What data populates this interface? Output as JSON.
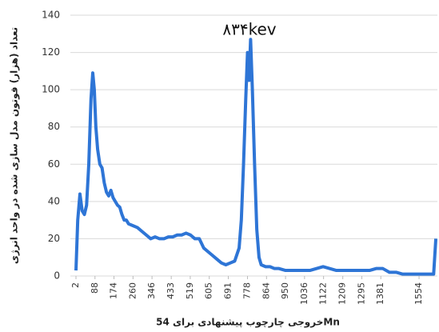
{
  "chart_data": {
    "type": "line",
    "annotation": "۸۳۴kev",
    "ylabel": "تعداد (هزار) فوتون مدل سازی شده در واحد انرژی",
    "xlabel": "خروجی چارچوب پیشنهادی برای 54Mn",
    "x": [
      2,
      10,
      20,
      30,
      40,
      50,
      60,
      70,
      78,
      85,
      92,
      100,
      110,
      120,
      130,
      140,
      150,
      160,
      170,
      180,
      190,
      200,
      210,
      220,
      230,
      240,
      260,
      280,
      300,
      320,
      340,
      360,
      380,
      400,
      420,
      440,
      460,
      480,
      500,
      520,
      540,
      560,
      580,
      600,
      620,
      640,
      660,
      680,
      700,
      720,
      740,
      750,
      760,
      770,
      778,
      785,
      792,
      800,
      810,
      820,
      830,
      840,
      860,
      880,
      900,
      920,
      950,
      980,
      1000,
      1030,
      1060,
      1090,
      1120,
      1150,
      1180,
      1210,
      1240,
      1270,
      1300,
      1330,
      1360,
      1390,
      1420,
      1450,
      1480,
      1510,
      1540,
      1570,
      1600,
      1620,
      1630
    ],
    "series": [
      {
        "color": "#2e75d6",
        "values": [
          3,
          30,
          44,
          35,
          33,
          38,
          60,
          95,
          109,
          100,
          80,
          68,
          60,
          58,
          50,
          45,
          43,
          46,
          42,
          40,
          38,
          37,
          33,
          30,
          30,
          28,
          27,
          26,
          24,
          22,
          20,
          21,
          20,
          20,
          21,
          21,
          22,
          22,
          23,
          22,
          20,
          20,
          15,
          13,
          11,
          9,
          7,
          6,
          7,
          8,
          15,
          30,
          60,
          95,
          120,
          105,
          127,
          100,
          60,
          25,
          10,
          6,
          5,
          5,
          4,
          4,
          3,
          3,
          3,
          3,
          3,
          4,
          5,
          4,
          3,
          3,
          3,
          3,
          3,
          3,
          4,
          4,
          2,
          2,
          1,
          1,
          1,
          1,
          1,
          1,
          20
        ]
      }
    ],
    "xlim": [
      2,
      1637
    ],
    "xticks": [
      2,
      88,
      174,
      260,
      346,
      433,
      519,
      605,
      691,
      778,
      864,
      950,
      1036,
      1122,
      1209,
      1295,
      1381,
      1554
    ],
    "ylim": [
      0,
      140
    ],
    "yticks": [
      0,
      20,
      40,
      60,
      80,
      100,
      120,
      140
    ],
    "grid": true
  }
}
